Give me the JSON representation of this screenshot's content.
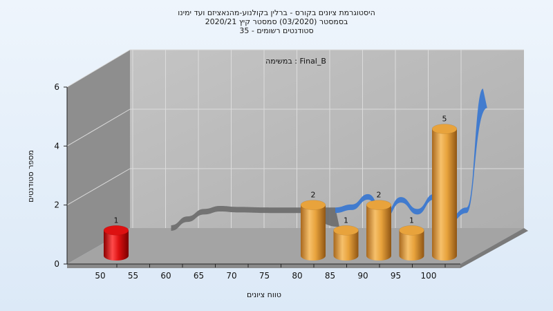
{
  "chart_data": {
    "type": "bar",
    "title_lines": [
      "היסטוגרמת ציונים בקורס - ברלין בקולנוע-מהנאציזם ועד ימינו",
      "בסמסטר  (03/2020)  סמסטר קיץ  2020/21",
      "סטודנטים רשומים - 35"
    ],
    "annotation": "במשימה : Final_B",
    "xlabel": "טווח ציונים",
    "ylabel": "מספר סטודנטים",
    "x_ticks": [
      "50",
      "55",
      "60",
      "65",
      "70",
      "75",
      "80",
      "85",
      "90",
      "95",
      "100"
    ],
    "y_ticks": [
      "0",
      "2",
      "4",
      "6"
    ],
    "ylim": [
      0,
      6
    ],
    "grid": true,
    "bars": [
      {
        "x": 50,
        "value": 1,
        "label": "1",
        "color": "#dd1111"
      },
      {
        "x": 80,
        "value": 2,
        "label": "2",
        "color": "#e8a33c"
      },
      {
        "x": 85,
        "value": 1,
        "label": "1",
        "color": "#e8a33c"
      },
      {
        "x": 90,
        "value": 2,
        "label": "2",
        "color": "#e8a33c"
      },
      {
        "x": 95,
        "value": 1,
        "label": "1",
        "color": "#e8a33c"
      },
      {
        "x": 100,
        "value": 5,
        "label": "5",
        "color": "#e8a33c"
      }
    ],
    "distribution_curve": {
      "color_flat": "#6f6f6f",
      "color_rise": "#3b78d0",
      "x": [
        55,
        57.5,
        60,
        62.5,
        65,
        70,
        75,
        80,
        82.5,
        85,
        87.5,
        90,
        92.5,
        95,
        97.5,
        100,
        102.5
      ],
      "y": [
        0.0,
        0.3,
        0.55,
        0.65,
        0.62,
        0.6,
        0.6,
        0.6,
        0.7,
        1.05,
        0.4,
        0.95,
        0.55,
        1.05,
        0.3,
        0.6,
        4.6
      ]
    },
    "colors": {
      "wall_fill": "#b9b9b9",
      "side_wall_fill": "#8e8e8e",
      "floor_fill": "#a4a4a4",
      "grid_line": "#dcdcdc"
    }
  }
}
